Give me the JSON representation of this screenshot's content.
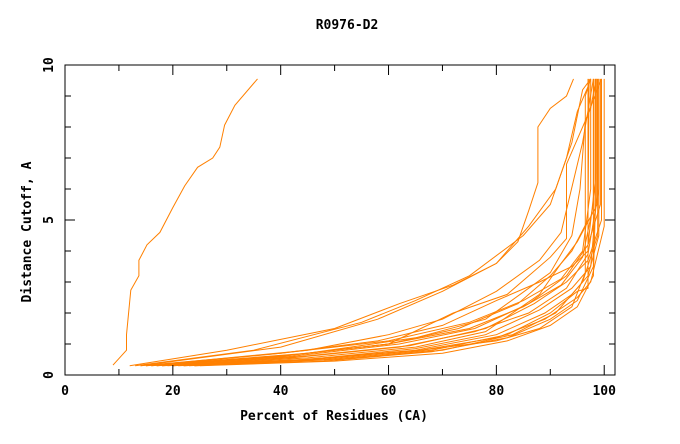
{
  "chart_data": {
    "type": "line",
    "title": "R0976-D2",
    "xlabel": "Percent of Residues (CA)",
    "ylabel": "Distance Cutoff, A",
    "xlim": [
      0,
      102
    ],
    "ylim": [
      0,
      10
    ],
    "x_ticks": [
      0,
      20,
      40,
      60,
      80,
      100
    ],
    "y_ticks": [
      0,
      5,
      10
    ],
    "grid": false,
    "line_color": "#ff8000",
    "series": [
      {
        "points": [
          [
            8.9,
            0.32
          ],
          [
            11.4,
            0.8
          ],
          [
            11.4,
            1.3
          ],
          [
            12.2,
            2.74
          ],
          [
            13.7,
            3.2
          ],
          [
            13.7,
            3.7
          ],
          [
            15.2,
            4.2
          ],
          [
            17.6,
            4.6
          ],
          [
            20,
            5.4
          ],
          [
            22.2,
            6.1
          ],
          [
            24.6,
            6.7
          ],
          [
            27.4,
            7.0
          ],
          [
            28.7,
            7.35
          ],
          [
            29.6,
            8.06
          ],
          [
            31.5,
            8.7
          ],
          [
            35.7,
            9.55
          ]
        ]
      },
      {
        "points": [
          [
            12,
            0.3
          ],
          [
            30,
            0.8
          ],
          [
            50,
            1.5
          ],
          [
            62,
            2.3
          ],
          [
            72,
            2.9
          ],
          [
            80,
            3.6
          ],
          [
            84,
            4.3
          ],
          [
            86,
            5.3
          ],
          [
            87.7,
            6.2
          ],
          [
            87.7,
            8.0
          ],
          [
            90,
            8.6
          ],
          [
            93,
            9.0
          ],
          [
            94.3,
            9.55
          ]
        ]
      },
      {
        "points": [
          [
            13,
            0.3
          ],
          [
            35,
            0.8
          ],
          [
            55,
            1.7
          ],
          [
            65,
            2.4
          ],
          [
            75,
            3.2
          ],
          [
            85,
            4.5
          ],
          [
            90,
            5.5
          ],
          [
            93,
            7.0
          ],
          [
            95,
            8.5
          ],
          [
            97,
            9.3
          ]
        ]
      },
      {
        "points": [
          [
            14,
            0.3
          ],
          [
            40,
            0.9
          ],
          [
            58,
            1.8
          ],
          [
            70,
            2.7
          ],
          [
            80,
            3.6
          ],
          [
            86,
            4.8
          ],
          [
            91,
            6.0
          ],
          [
            94,
            7.5
          ],
          [
            96,
            9.2
          ],
          [
            97.5,
            9.55
          ]
        ]
      },
      {
        "points": [
          [
            15,
            0.3
          ],
          [
            45,
            0.8
          ],
          [
            60,
            1.3
          ],
          [
            70,
            1.8
          ],
          [
            80,
            2.7
          ],
          [
            88,
            3.7
          ],
          [
            92,
            4.6
          ],
          [
            96,
            7.5
          ],
          [
            98,
            9.55
          ]
        ]
      },
      {
        "points": [
          [
            16,
            0.3
          ],
          [
            40,
            0.7
          ],
          [
            60,
            1.1
          ],
          [
            75,
            1.7
          ],
          [
            85,
            2.4
          ],
          [
            92,
            3.1
          ],
          [
            96,
            4.0
          ],
          [
            97.5,
            6.0
          ],
          [
            97.5,
            9.55
          ]
        ]
      },
      {
        "points": [
          [
            17,
            0.3
          ],
          [
            40,
            0.6
          ],
          [
            60,
            1.0
          ],
          [
            75,
            1.5
          ],
          [
            85,
            2.2
          ],
          [
            92,
            2.9
          ],
          [
            96,
            3.8
          ],
          [
            98,
            5.5
          ],
          [
            98,
            9.55
          ]
        ]
      },
      {
        "points": [
          [
            18,
            0.3
          ],
          [
            42,
            0.6
          ],
          [
            62,
            1.0
          ],
          [
            76,
            1.5
          ],
          [
            86,
            2.3
          ],
          [
            93,
            3.2
          ],
          [
            97,
            4.2
          ],
          [
            98.5,
            6.5
          ],
          [
            98.5,
            9.55
          ]
        ]
      },
      {
        "points": [
          [
            19,
            0.3
          ],
          [
            42,
            0.55
          ],
          [
            62,
            0.9
          ],
          [
            76,
            1.4
          ],
          [
            86,
            2.0
          ],
          [
            93,
            2.8
          ],
          [
            97,
            3.9
          ],
          [
            99,
            6.0
          ],
          [
            99,
            9.55
          ]
        ]
      },
      {
        "points": [
          [
            20,
            0.3
          ],
          [
            44,
            0.6
          ],
          [
            64,
            0.95
          ],
          [
            78,
            1.5
          ],
          [
            87,
            2.3
          ],
          [
            93,
            3.0
          ],
          [
            97,
            3.7
          ],
          [
            99.5,
            5.0
          ],
          [
            99.5,
            9.55
          ]
        ]
      },
      {
        "points": [
          [
            21,
            0.3
          ],
          [
            45,
            0.5
          ],
          [
            65,
            0.85
          ],
          [
            78,
            1.3
          ],
          [
            88,
            2.1
          ],
          [
            94,
            2.8
          ],
          [
            97.5,
            3.5
          ],
          [
            98.5,
            5.5
          ],
          [
            98.5,
            9.55
          ]
        ]
      },
      {
        "points": [
          [
            22,
            0.3
          ],
          [
            45,
            0.5
          ],
          [
            65,
            0.8
          ],
          [
            80,
            1.3
          ],
          [
            89,
            2.0
          ],
          [
            94,
            2.6
          ],
          [
            97,
            3.2
          ],
          [
            99,
            4.5
          ],
          [
            99,
            9.55
          ]
        ]
      },
      {
        "points": [
          [
            23,
            0.3
          ],
          [
            46,
            0.5
          ],
          [
            66,
            0.8
          ],
          [
            80,
            1.2
          ],
          [
            89,
            1.8
          ],
          [
            95,
            2.5
          ],
          [
            97.5,
            3.0
          ],
          [
            100,
            4.8
          ],
          [
            100,
            9.55
          ]
        ]
      },
      {
        "points": [
          [
            24,
            0.3
          ],
          [
            48,
            0.45
          ],
          [
            68,
            0.75
          ],
          [
            82,
            1.2
          ],
          [
            90,
            1.8
          ],
          [
            95,
            2.4
          ],
          [
            98,
            3.5
          ],
          [
            98,
            9.55
          ]
        ]
      },
      {
        "points": [
          [
            25,
            0.3
          ],
          [
            50,
            0.45
          ],
          [
            70,
            0.7
          ],
          [
            82,
            1.1
          ],
          [
            90,
            1.6
          ],
          [
            95,
            2.2
          ],
          [
            98,
            3.2
          ],
          [
            98.3,
            5.0
          ],
          [
            98.3,
            9.55
          ]
        ]
      },
      {
        "points": [
          [
            14,
            0.3
          ],
          [
            40,
            0.7
          ],
          [
            58,
            1.1
          ],
          [
            70,
            1.6
          ],
          [
            80,
            2.4
          ],
          [
            88,
            3.0
          ],
          [
            94,
            3.5
          ],
          [
            97,
            4.0
          ],
          [
            97,
            9.55
          ]
        ]
      },
      {
        "points": [
          [
            16,
            0.3
          ],
          [
            42,
            0.65
          ],
          [
            60,
            1.0
          ],
          [
            73,
            1.5
          ],
          [
            84,
            2.3
          ],
          [
            90,
            3.2
          ],
          [
            94,
            4.0
          ],
          [
            97,
            5.0
          ],
          [
            97.2,
            9.55
          ]
        ]
      },
      {
        "points": [
          [
            20,
            0.3
          ],
          [
            45,
            0.55
          ],
          [
            65,
            0.9
          ],
          [
            78,
            1.4
          ],
          [
            88,
            2.6
          ],
          [
            92,
            3.6
          ],
          [
            95,
            4.3
          ],
          [
            98.7,
            5.5
          ],
          [
            98.7,
            9.55
          ]
        ]
      },
      {
        "points": [
          [
            22,
            0.3
          ],
          [
            48,
            0.5
          ],
          [
            68,
            0.8
          ],
          [
            82,
            1.3
          ],
          [
            90,
            2.0
          ],
          [
            95,
            2.7
          ],
          [
            97,
            2.8
          ],
          [
            97,
            4.2
          ],
          [
            99.3,
            5.5
          ],
          [
            99.3,
            9.55
          ]
        ]
      },
      {
        "points": [
          [
            18,
            0.3
          ],
          [
            44,
            0.5
          ],
          [
            66,
            0.8
          ],
          [
            80,
            1.1
          ],
          [
            88,
            1.5
          ],
          [
            94,
            2.2
          ],
          [
            96.5,
            3.3
          ],
          [
            96.5,
            9.0
          ],
          [
            97.5,
            9.55
          ]
        ]
      },
      {
        "points": [
          [
            24,
            0.3
          ],
          [
            50,
            0.5
          ],
          [
            70,
            0.8
          ],
          [
            83,
            1.3
          ],
          [
            91,
            2.0
          ],
          [
            96,
            3.0
          ],
          [
            98.8,
            4.5
          ],
          [
            98.8,
            9.55
          ]
        ]
      },
      {
        "points": [
          [
            15,
            0.3
          ],
          [
            45,
            0.7
          ],
          [
            65,
            1.2
          ],
          [
            78,
            1.8
          ],
          [
            86,
            2.8
          ],
          [
            90,
            3.3
          ],
          [
            94,
            4.5
          ],
          [
            95.5,
            6.0
          ],
          [
            96.5,
            8.2
          ],
          [
            99.5,
            9.55
          ]
        ]
      },
      {
        "points": [
          [
            17,
            0.3
          ],
          [
            40,
            0.6
          ],
          [
            60,
            1.0
          ],
          [
            72,
            2.0
          ],
          [
            82,
            2.6
          ],
          [
            90,
            3.8
          ],
          [
            93,
            4.4
          ],
          [
            93,
            6.8
          ],
          [
            97.5,
            8.6
          ],
          [
            98.5,
            9.55
          ]
        ]
      }
    ]
  }
}
